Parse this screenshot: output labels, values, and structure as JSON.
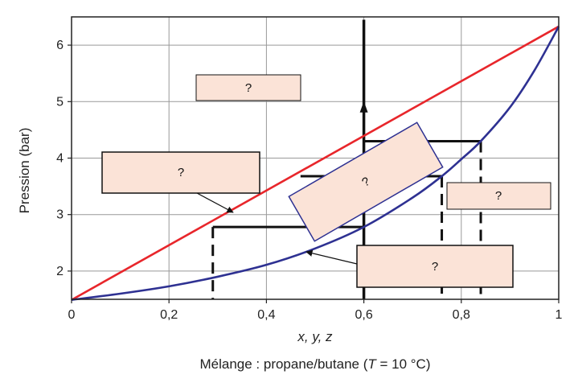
{
  "chart_data": {
    "type": "line",
    "xlabel": "x, y, z",
    "ylabel": "Pression (bar)",
    "caption": {
      "prefix": "Mélange : propane/butane (",
      "var": "T",
      "suffix": " = 10 °C)"
    },
    "xlim": [
      0,
      1
    ],
    "ylim": [
      1.5,
      6.5
    ],
    "xticks": [
      0,
      0.2,
      0.4,
      0.6,
      0.8,
      1
    ],
    "xtick_labels": [
      "0",
      "0,2",
      "0,4",
      "0,6",
      "0,8",
      "1"
    ],
    "yticks": [
      2,
      3,
      4,
      5,
      6
    ],
    "ytick_labels": [
      "2",
      "3",
      "4",
      "5",
      "6"
    ],
    "grid": true,
    "series": [
      {
        "color": "#e8262b",
        "x": [
          0,
          1
        ],
        "y": [
          1.49,
          6.33
        ]
      },
      {
        "color": "#2e3192",
        "x": [
          0,
          0.1,
          0.2,
          0.3,
          0.4,
          0.5,
          0.6,
          0.7,
          0.76,
          0.8,
          0.84,
          0.9,
          0.95,
          1
        ],
        "y": [
          1.49,
          1.6,
          1.73,
          1.9,
          2.11,
          2.4,
          2.78,
          3.3,
          3.68,
          3.98,
          4.3,
          4.9,
          5.55,
          6.33
        ]
      }
    ],
    "construction": {
      "composition_line": {
        "x": 0.6,
        "y_from": 1.5,
        "y_to": 6.45
      },
      "tie_lines": [
        {
          "y": 2.78,
          "x_left": 0.29,
          "x_right": 0.6
        },
        {
          "y": 3.68,
          "x_left": 0.47,
          "x_right": 0.76
        },
        {
          "y": 4.3,
          "x_left": 0.6,
          "x_right": 0.84
        }
      ],
      "dashed_verticals": [
        {
          "x": 0.29,
          "y_top": 2.78
        },
        {
          "x": 0.76,
          "y_top": 3.68
        },
        {
          "x": 0.84,
          "y_top": 4.3
        }
      ]
    },
    "annotation_boxes": [
      "?",
      "?",
      "?",
      "?",
      "?"
    ],
    "colors": {
      "box_fill": "#fbe3d7",
      "box_stroke": "#111111",
      "grid": "#999999",
      "axis": "#222222"
    }
  }
}
